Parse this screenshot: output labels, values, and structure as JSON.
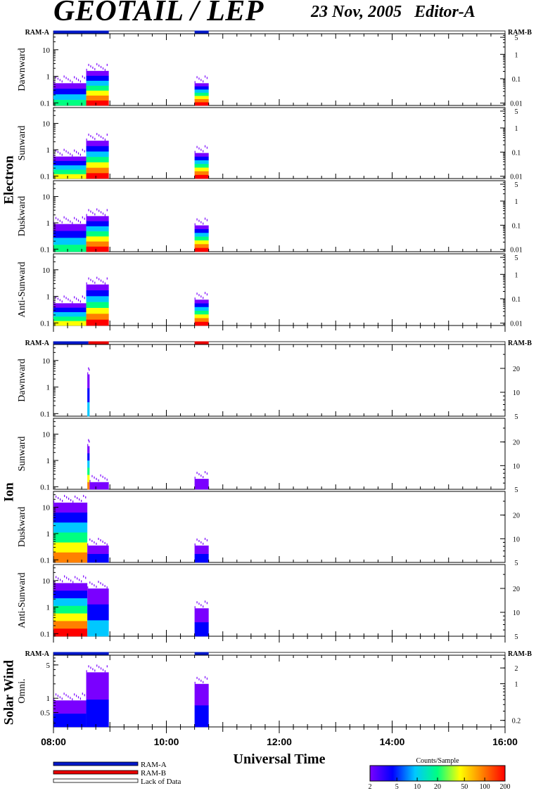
{
  "header": {
    "title": "GEOTAIL / LEP",
    "date": "23 Nov, 2005",
    "editor": "Editor-A"
  },
  "chart_data": {
    "type": "heatmap",
    "xlabel": "Universal Time",
    "x_ticks": [
      "08:00",
      "10:00",
      "12:00",
      "14:00",
      "16:00"
    ],
    "x_range_hours": [
      8,
      16
    ],
    "ram_labels": {
      "left": "RAM-A",
      "right": "RAM-B"
    },
    "colorbar": {
      "title": "Counts/Sample",
      "ticks": [
        "2",
        "5",
        "10",
        "20",
        "50",
        "100",
        "200"
      ],
      "tick_values": [
        2,
        5,
        10,
        20,
        50,
        100,
        200
      ],
      "colors": [
        "#7a00ff",
        "#0000ff",
        "#00c8ff",
        "#00ff80",
        "#ffff00",
        "#ff8000",
        "#ff0000"
      ]
    },
    "legend": [
      {
        "label": "RAM-A",
        "color": "#0018c8"
      },
      {
        "label": "RAM-B",
        "color": "#e80000"
      },
      {
        "label": "Lack of Data",
        "color": "#ffffff"
      }
    ],
    "groups": [
      {
        "name": "Electron",
        "status": [
          {
            "start": 8.0,
            "end": 8.98,
            "mode": "RAM-A"
          },
          {
            "start": 10.5,
            "end": 10.75,
            "mode": "RAM-A"
          }
        ],
        "left_ticks": [
          "0.1",
          "1",
          "10"
        ],
        "left_tick_values": [
          0.1,
          1,
          10
        ],
        "left_range": [
          0.08,
          40
        ],
        "right_ticks": [
          "0.01",
          "0.1",
          "1",
          "5"
        ],
        "right_tick_values": [
          0.01,
          0.1,
          1,
          5
        ],
        "right_range": [
          0.008,
          7
        ],
        "panels": [
          {
            "label": "Dawnward",
            "segments": [
              {
                "start": 8.0,
                "end": 8.58,
                "top": 0.55,
                "bottom_color": 3
              },
              {
                "start": 8.58,
                "end": 8.98,
                "top": 1.6,
                "bottom_color": 6
              },
              {
                "start": 10.5,
                "end": 10.75,
                "top": 0.55,
                "bottom_color": 6
              }
            ]
          },
          {
            "label": "Sunward",
            "segments": [
              {
                "start": 8.0,
                "end": 8.58,
                "top": 0.55,
                "bottom_color": 4
              },
              {
                "start": 8.58,
                "end": 8.98,
                "top": 2.2,
                "bottom_color": 6
              },
              {
                "start": 10.5,
                "end": 10.75,
                "top": 0.75,
                "bottom_color": 6
              }
            ]
          },
          {
            "label": "Duskward",
            "segments": [
              {
                "start": 8.0,
                "end": 8.58,
                "top": 0.9,
                "bottom_color": 3
              },
              {
                "start": 8.58,
                "end": 8.98,
                "top": 1.8,
                "bottom_color": 6
              },
              {
                "start": 10.5,
                "end": 10.75,
                "top": 0.8,
                "bottom_color": 6
              }
            ]
          },
          {
            "label": "Anti-Sunward",
            "segments": [
              {
                "start": 8.0,
                "end": 8.58,
                "top": 0.55,
                "bottom_color": 4
              },
              {
                "start": 8.58,
                "end": 8.98,
                "top": 2.8,
                "bottom_color": 6
              },
              {
                "start": 10.5,
                "end": 10.75,
                "top": 0.75,
                "bottom_color": 6
              }
            ]
          }
        ]
      },
      {
        "name": "Ion",
        "status": [
          {
            "start": 8.0,
            "end": 8.62,
            "mode": "RAM-A"
          },
          {
            "start": 8.62,
            "end": 8.98,
            "mode": "RAM-B"
          },
          {
            "start": 10.5,
            "end": 10.75,
            "mode": "RAM-B"
          }
        ],
        "left_ticks": [
          "0.1",
          "1",
          "10"
        ],
        "left_tick_values": [
          0.1,
          1,
          10
        ],
        "left_range": [
          0.08,
          40
        ],
        "right_ticks": [
          "5",
          "10",
          "20"
        ],
        "right_tick_values": [
          5,
          10,
          20
        ],
        "right_range": [
          5,
          40
        ],
        "panels": [
          {
            "label": "Dawnward",
            "segments": [
              {
                "start": 8.6,
                "end": 8.64,
                "top": 3.0,
                "bottom_color": 2
              }
            ]
          },
          {
            "label": "Sunward",
            "segments": [
              {
                "start": 8.6,
                "end": 8.64,
                "top": 3.5,
                "bottom_color": 5
              },
              {
                "start": 8.64,
                "end": 8.98,
                "top": 0.15,
                "bottom_color": 0
              },
              {
                "start": 10.5,
                "end": 10.75,
                "top": 0.2,
                "bottom_color": 0
              }
            ]
          },
          {
            "label": "Duskward",
            "segments": [
              {
                "start": 8.0,
                "end": 8.6,
                "top": 15,
                "bottom_color": 5
              },
              {
                "start": 8.6,
                "end": 8.98,
                "top": 0.35,
                "bottom_color": 1
              },
              {
                "start": 10.5,
                "end": 10.75,
                "top": 0.35,
                "bottom_color": 1
              }
            ]
          },
          {
            "label": "Anti-Sunward",
            "segments": [
              {
                "start": 8.0,
                "end": 8.6,
                "top": 8,
                "bottom_color": 6
              },
              {
                "start": 8.6,
                "end": 8.98,
                "top": 5,
                "bottom_color": 2
              },
              {
                "start": 10.5,
                "end": 10.75,
                "top": 0.9,
                "bottom_color": 1
              }
            ]
          }
        ]
      },
      {
        "name": "Solar Wind",
        "status": [
          {
            "start": 8.0,
            "end": 8.98,
            "mode": "RAM-A"
          },
          {
            "start": 10.5,
            "end": 10.75,
            "mode": "RAM-A"
          }
        ],
        "left_ticks": [
          "0.5",
          "1",
          "5"
        ],
        "left_tick_values": [
          0.5,
          1,
          5
        ],
        "left_range": [
          0.25,
          8
        ],
        "right_ticks": [
          "0.2",
          "1",
          "2"
        ],
        "right_tick_values": [
          0.2,
          1,
          2
        ],
        "right_range": [
          0.15,
          3.5
        ],
        "panels": [
          {
            "label": "Omni.",
            "segments": [
              {
                "start": 8.0,
                "end": 8.58,
                "top": 0.9,
                "bottom_color": 1
              },
              {
                "start": 8.58,
                "end": 8.98,
                "top": 3.5,
                "bottom_color": 1
              },
              {
                "start": 10.5,
                "end": 10.75,
                "top": 2.0,
                "bottom_color": 1
              }
            ]
          }
        ]
      }
    ]
  }
}
